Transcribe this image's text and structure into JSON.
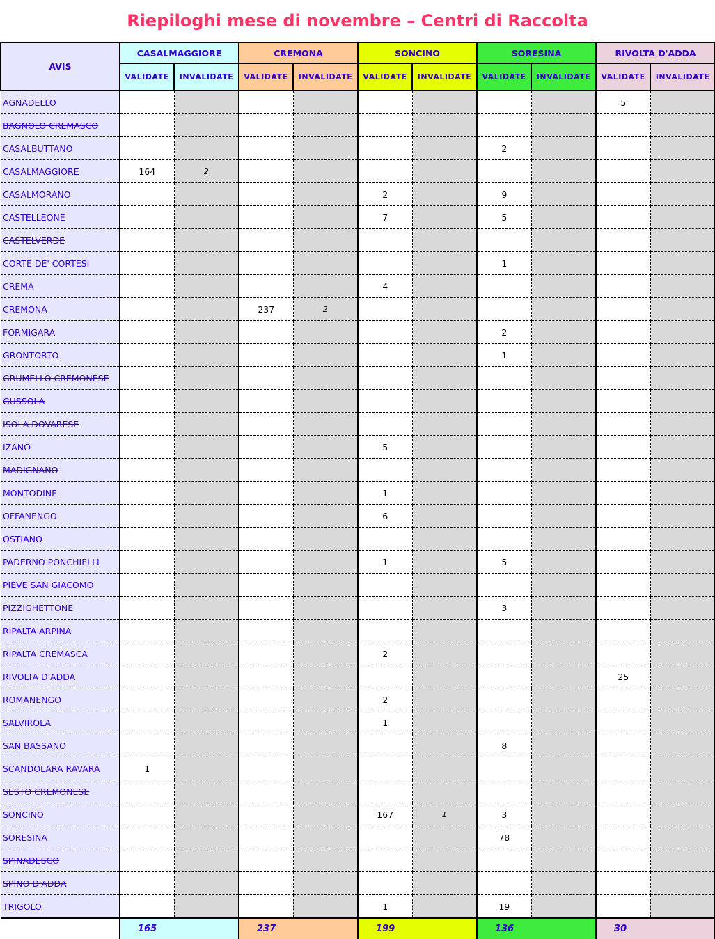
{
  "title": "Riepiloghi mese di novembre – Centri di Raccolta",
  "avis_header": "AVIS",
  "sub_labels": {
    "validate": "VALIDATE",
    "invalidate": "INVALIDATE"
  },
  "centers": [
    {
      "name": "CASALMAGGIORE",
      "color": "#ccffff",
      "total": "165"
    },
    {
      "name": "CREMONA",
      "color": "#ffcc99",
      "total": "237"
    },
    {
      "name": "SONCINO",
      "color": "#e6ff00",
      "total": "199"
    },
    {
      "name": "SORESINA",
      "color": "#3dec3d",
      "total": "136"
    },
    {
      "name": "RIVOLTA D'ADDA",
      "color": "#ecd2dc",
      "total": "30"
    }
  ],
  "rows": [
    {
      "name": "AGNADELLO",
      "struck": false,
      "values": [
        "",
        "",
        "",
        "",
        "",
        "",
        "",
        "",
        "5",
        ""
      ]
    },
    {
      "name": "BAGNOLO CREMASCO",
      "struck": true,
      "values": [
        "",
        "",
        "",
        "",
        "",
        "",
        "",
        "",
        "",
        ""
      ]
    },
    {
      "name": "CASALBUTTANO",
      "struck": false,
      "values": [
        "",
        "",
        "",
        "",
        "",
        "",
        "2",
        "",
        "",
        ""
      ]
    },
    {
      "name": "CASALMAGGIORE",
      "struck": false,
      "values": [
        "164",
        "2",
        "",
        "",
        "",
        "",
        "",
        "",
        "",
        ""
      ]
    },
    {
      "name": "CASALMORANO",
      "struck": false,
      "values": [
        "",
        "",
        "",
        "",
        "2",
        "",
        "9",
        "",
        "",
        ""
      ]
    },
    {
      "name": "CASTELLEONE",
      "struck": false,
      "values": [
        "",
        "",
        "",
        "",
        "7",
        "",
        "5",
        "",
        "",
        ""
      ]
    },
    {
      "name": "CASTELVERDE",
      "struck": true,
      "values": [
        "",
        "",
        "",
        "",
        "",
        "",
        "",
        "",
        "",
        ""
      ]
    },
    {
      "name": "CORTE DE' CORTESI",
      "struck": false,
      "values": [
        "",
        "",
        "",
        "",
        "",
        "",
        "1",
        "",
        "",
        ""
      ]
    },
    {
      "name": "CREMA",
      "struck": false,
      "values": [
        "",
        "",
        "",
        "",
        "4",
        "",
        "",
        "",
        "",
        ""
      ]
    },
    {
      "name": "CREMONA",
      "struck": false,
      "values": [
        "",
        "",
        "237",
        "2",
        "",
        "",
        "",
        "",
        "",
        ""
      ]
    },
    {
      "name": "FORMIGARA",
      "struck": false,
      "values": [
        "",
        "",
        "",
        "",
        "",
        "",
        "2",
        "",
        "",
        ""
      ]
    },
    {
      "name": "GRONTORTO",
      "struck": false,
      "values": [
        "",
        "",
        "",
        "",
        "",
        "",
        "1",
        "",
        "",
        ""
      ]
    },
    {
      "name": "GRUMELLO CREMONESE",
      "struck": true,
      "values": [
        "",
        "",
        "",
        "",
        "",
        "",
        "",
        "",
        "",
        ""
      ]
    },
    {
      "name": "GUSSOLA",
      "struck": true,
      "values": [
        "",
        "",
        "",
        "",
        "",
        "",
        "",
        "",
        "",
        ""
      ]
    },
    {
      "name": "ISOLA DOVARESE",
      "struck": true,
      "values": [
        "",
        "",
        "",
        "",
        "",
        "",
        "",
        "",
        "",
        ""
      ]
    },
    {
      "name": "IZANO",
      "struck": false,
      "values": [
        "",
        "",
        "",
        "",
        "5",
        "",
        "",
        "",
        "",
        ""
      ]
    },
    {
      "name": "MADIGNANO",
      "struck": true,
      "values": [
        "",
        "",
        "",
        "",
        "",
        "",
        "",
        "",
        "",
        ""
      ]
    },
    {
      "name": "MONTODINE",
      "struck": false,
      "values": [
        "",
        "",
        "",
        "",
        "1",
        "",
        "",
        "",
        "",
        ""
      ]
    },
    {
      "name": "OFFANENGO",
      "struck": false,
      "values": [
        "",
        "",
        "",
        "",
        "6",
        "",
        "",
        "",
        "",
        ""
      ]
    },
    {
      "name": "OSTIANO",
      "struck": true,
      "values": [
        "",
        "",
        "",
        "",
        "",
        "",
        "",
        "",
        "",
        ""
      ]
    },
    {
      "name": "PADERNO PONCHIELLI",
      "struck": false,
      "values": [
        "",
        "",
        "",
        "",
        "1",
        "",
        "5",
        "",
        "",
        ""
      ]
    },
    {
      "name": "PIEVE SAN GIACOMO",
      "struck": true,
      "values": [
        "",
        "",
        "",
        "",
        "",
        "",
        "",
        "",
        "",
        ""
      ]
    },
    {
      "name": "PIZZIGHETTONE",
      "struck": false,
      "values": [
        "",
        "",
        "",
        "",
        "",
        "",
        "3",
        "",
        "",
        ""
      ]
    },
    {
      "name": "RIPALTA ARPINA",
      "struck": true,
      "values": [
        "",
        "",
        "",
        "",
        "",
        "",
        "",
        "",
        "",
        ""
      ]
    },
    {
      "name": "RIPALTA CREMASCA",
      "struck": false,
      "values": [
        "",
        "",
        "",
        "",
        "2",
        "",
        "",
        "",
        "",
        ""
      ]
    },
    {
      "name": "RIVOLTA D'ADDA",
      "struck": false,
      "values": [
        "",
        "",
        "",
        "",
        "",
        "",
        "",
        "",
        "25",
        ""
      ]
    },
    {
      "name": "ROMANENGO",
      "struck": false,
      "values": [
        "",
        "",
        "",
        "",
        "2",
        "",
        "",
        "",
        "",
        ""
      ]
    },
    {
      "name": "SALVIROLA",
      "struck": false,
      "values": [
        "",
        "",
        "",
        "",
        "1",
        "",
        "",
        "",
        "",
        ""
      ]
    },
    {
      "name": "SAN BASSANO",
      "struck": false,
      "values": [
        "",
        "",
        "",
        "",
        "",
        "",
        "8",
        "",
        "",
        ""
      ]
    },
    {
      "name": "SCANDOLARA RAVARA",
      "struck": false,
      "values": [
        "1",
        "",
        "",
        "",
        "",
        "",
        "",
        "",
        "",
        ""
      ]
    },
    {
      "name": "SESTO CREMONESE",
      "struck": true,
      "values": [
        "",
        "",
        "",
        "",
        "",
        "",
        "",
        "",
        "",
        ""
      ]
    },
    {
      "name": "SONCINO",
      "struck": false,
      "values": [
        "",
        "",
        "",
        "",
        "167",
        "1",
        "3",
        "",
        "",
        ""
      ]
    },
    {
      "name": "SORESINA",
      "struck": false,
      "values": [
        "",
        "",
        "",
        "",
        "",
        "",
        "78",
        "",
        "",
        ""
      ]
    },
    {
      "name": "SPINADESCO",
      "struck": true,
      "values": [
        "",
        "",
        "",
        "",
        "",
        "",
        "",
        "",
        "",
        ""
      ]
    },
    {
      "name": "SPINO D'ADDA",
      "struck": true,
      "values": [
        "",
        "",
        "",
        "",
        "",
        "",
        "",
        "",
        "",
        ""
      ]
    },
    {
      "name": "TRIGOLO",
      "struck": false,
      "values": [
        "",
        "",
        "",
        "",
        "1",
        "",
        "19",
        "",
        "",
        ""
      ]
    }
  ]
}
